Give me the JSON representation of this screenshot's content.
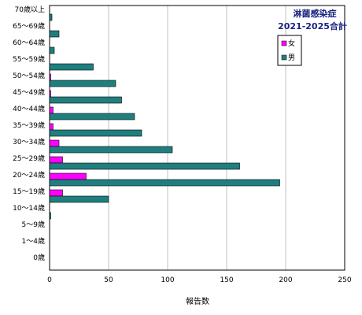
{
  "chart_data": {
    "type": "bar",
    "orientation": "horizontal",
    "title_lines": [
      "淋菌感染症",
      "2021-2025合計"
    ],
    "xlabel": "報告数",
    "ylabel": "",
    "xlim": [
      0,
      250
    ],
    "xticks": [
      0,
      50,
      100,
      150,
      200,
      250
    ],
    "grid": true,
    "legend_position": "top-right",
    "categories": [
      "70歳以上",
      "65～69歳",
      "60～64歳",
      "55～59歳",
      "50～54歳",
      "45～49歳",
      "40～44歳",
      "35～39歳",
      "30～34歳",
      "25～29歳",
      "20～24歳",
      "15～19歳",
      "10～14歳",
      "5～9歳",
      "1～4歳",
      "0歳"
    ],
    "series": [
      {
        "name": "女",
        "color": "#ff00ff",
        "values": [
          0,
          0,
          0,
          0,
          1,
          1,
          3,
          3,
          8,
          11,
          31,
          11,
          0,
          0,
          0,
          0
        ]
      },
      {
        "name": "男",
        "color": "#1f7f7f",
        "values": [
          2,
          8,
          4,
          37,
          56,
          61,
          72,
          78,
          104,
          161,
          195,
          50,
          1,
          0,
          0,
          0
        ]
      }
    ]
  }
}
